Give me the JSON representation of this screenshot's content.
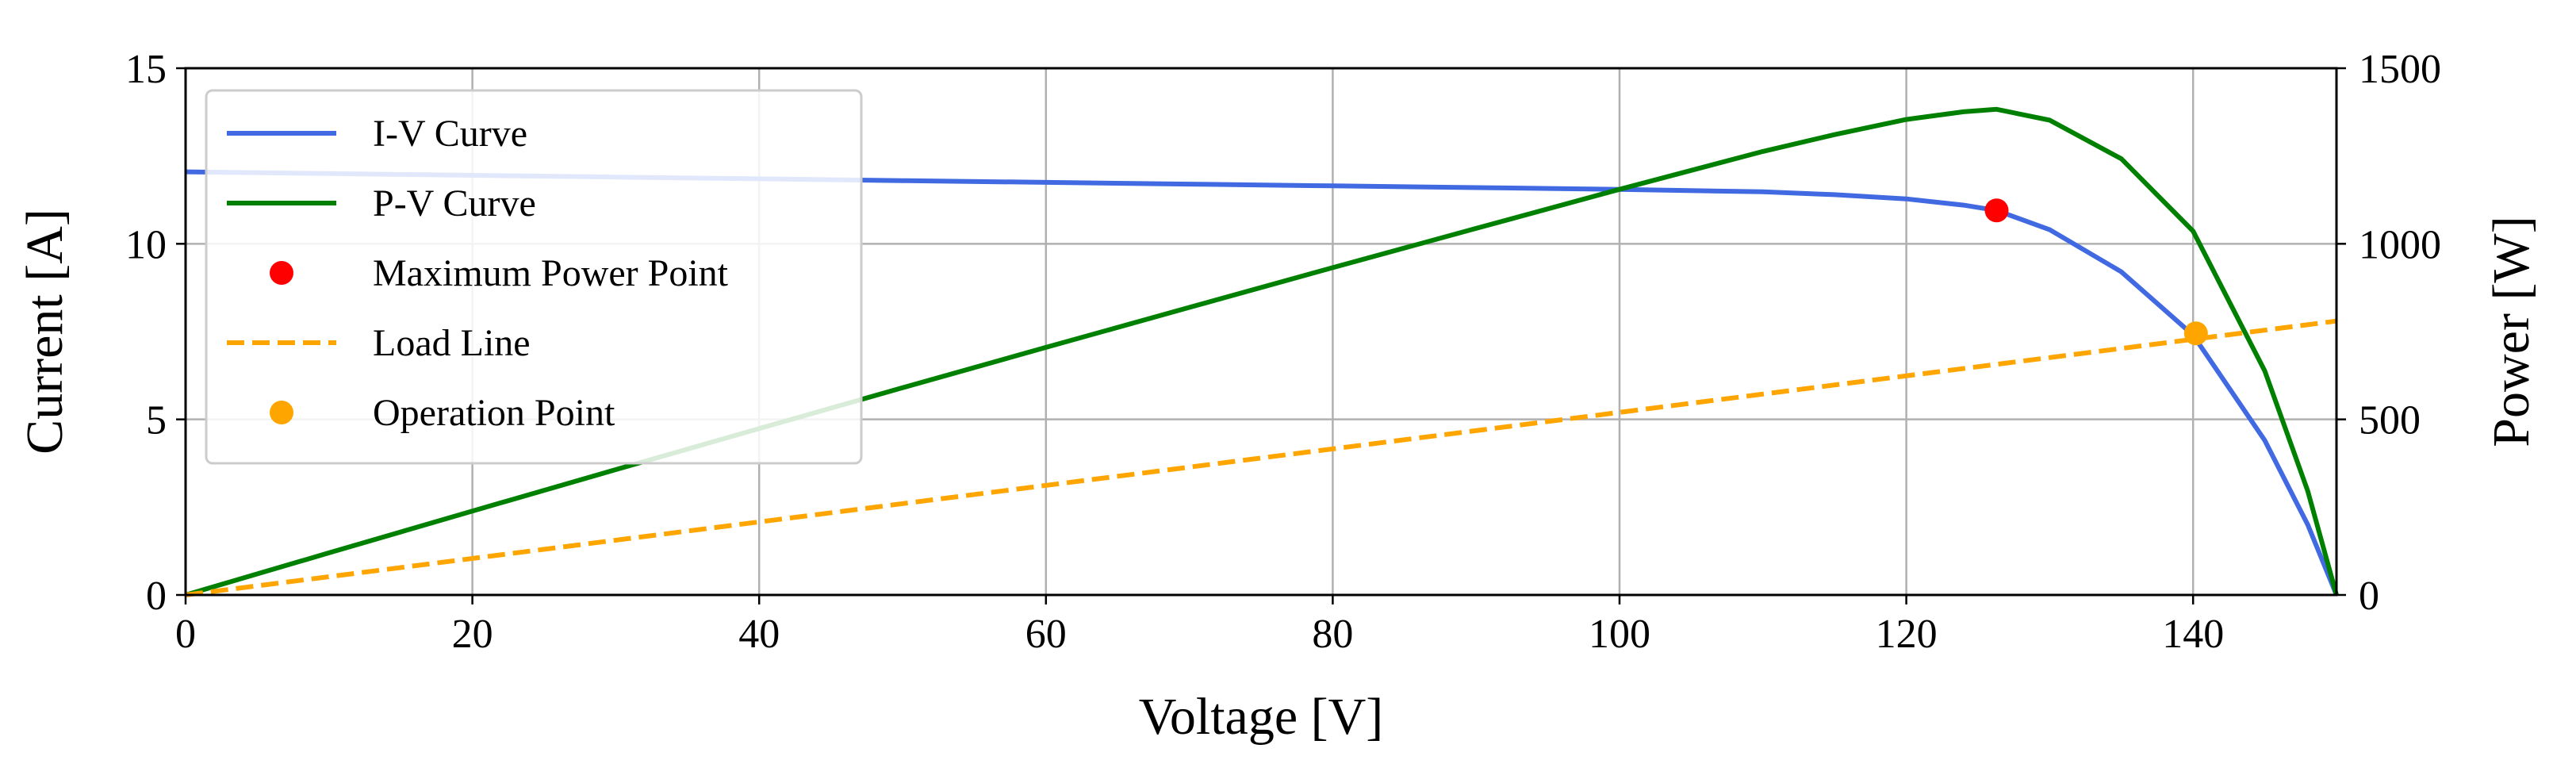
{
  "chart_data": {
    "type": "line",
    "title": "",
    "xlabel": "Voltage [V]",
    "ylabel_left": "Current [A]",
    "ylabel_right": "Power [W]",
    "xlim": [
      0,
      150
    ],
    "ylim_left": [
      0,
      15
    ],
    "ylim_right": [
      0,
      1500
    ],
    "xticks": [
      0,
      20,
      40,
      60,
      80,
      100,
      120,
      140
    ],
    "yticks_left": [
      0,
      5,
      10,
      15
    ],
    "yticks_right": [
      0,
      500,
      1000,
      1500
    ],
    "grid": true,
    "legend_position": "upper-left",
    "series": [
      {
        "name": "I-V Curve",
        "axis": "left",
        "style": "solid",
        "color": "#4169e1",
        "x": [
          0,
          10,
          20,
          30,
          40,
          50,
          60,
          70,
          80,
          90,
          100,
          110,
          115,
          120,
          124,
          126.3,
          130,
          135,
          140,
          145,
          148,
          150
        ],
        "y": [
          12.05,
          12.0,
          11.95,
          11.9,
          11.85,
          11.8,
          11.75,
          11.7,
          11.65,
          11.6,
          11.55,
          11.48,
          11.4,
          11.28,
          11.1,
          10.95,
          10.4,
          9.2,
          7.4,
          4.4,
          2.0,
          0
        ]
      },
      {
        "name": "P-V Curve",
        "axis": "right",
        "style": "solid",
        "color": "#008000",
        "x": [
          0,
          10,
          20,
          30,
          40,
          50,
          60,
          70,
          80,
          90,
          100,
          110,
          115,
          120,
          124,
          126.3,
          130,
          135,
          140,
          145,
          148,
          150
        ],
        "y": [
          0,
          120,
          239,
          357,
          474,
          590,
          705,
          819,
          932,
          1044,
          1155,
          1263,
          1311,
          1354,
          1376,
          1383,
          1352,
          1242,
          1036,
          638,
          296,
          0
        ]
      },
      {
        "name": "Load Line",
        "axis": "left",
        "style": "dashed",
        "color": "#ffa500",
        "x": [
          0,
          150
        ],
        "y": [
          0,
          7.8
        ]
      }
    ],
    "points": [
      {
        "name": "Maximum Power Point",
        "axis": "left",
        "x": 126.3,
        "y": 10.95,
        "color": "#ff0000"
      },
      {
        "name": "Operation Point",
        "axis": "left",
        "x": 140.2,
        "y": 7.45,
        "color": "#ffa500"
      }
    ],
    "legend": [
      {
        "label": "I-V Curve",
        "kind": "line",
        "color": "#4169e1"
      },
      {
        "label": "P-V Curve",
        "kind": "line",
        "color": "#008000"
      },
      {
        "label": "Maximum Power Point",
        "kind": "marker",
        "color": "#ff0000"
      },
      {
        "label": "Load Line",
        "kind": "dashed",
        "color": "#ffa500"
      },
      {
        "label": "Operation Point",
        "kind": "marker",
        "color": "#ffa500"
      }
    ]
  }
}
